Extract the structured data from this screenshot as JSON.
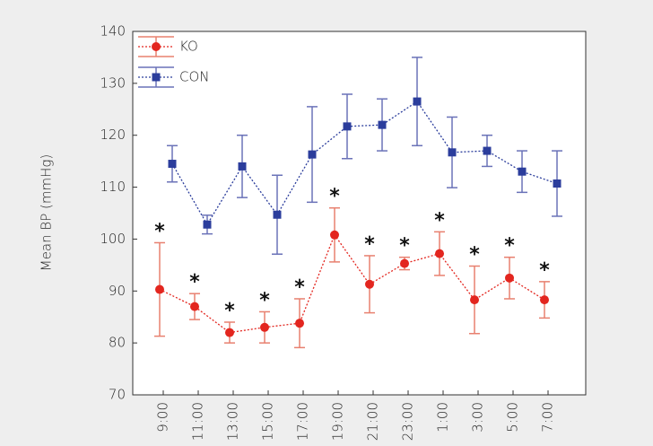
{
  "chart_data": {
    "type": "line",
    "y_label": "Mean BP (mmHg)",
    "categories": [
      "9:00",
      "11:00",
      "13:00",
      "15:00",
      "17:00",
      "19:00",
      "21:00",
      "23:00",
      "1:00",
      "3:00",
      "5:00",
      "7:00"
    ],
    "series": [
      {
        "name": "KO",
        "color": "#e3261f",
        "error_color": "#e8806f",
        "marker": "circle",
        "values": [
          90.3,
          87,
          82,
          83,
          83.8,
          100.8,
          91.3,
          95.3,
          97.2,
          88.3,
          92.5,
          88.3
        ],
        "errors": [
          9,
          2.5,
          2,
          3,
          4.7,
          5.2,
          5.5,
          1.2,
          4.2,
          6.5,
          4,
          3.5
        ],
        "significance_labels": [
          "*",
          "*",
          "*",
          "*",
          "*",
          "*",
          "*",
          "*",
          "*",
          "*",
          "*",
          "*"
        ]
      },
      {
        "name": "CON",
        "color": "#2b3d9c",
        "error_color": "#6a72b8",
        "marker": "square",
        "values": [
          114.5,
          102.8,
          114,
          104.7,
          116.3,
          121.7,
          122,
          126.5,
          116.7,
          117,
          113,
          110.7
        ],
        "errors": [
          3.5,
          1.8,
          6,
          7.6,
          9.2,
          6.2,
          5,
          8.5,
          6.8,
          3,
          4,
          6.3
        ]
      }
    ],
    "ylim": [
      70,
      140
    ],
    "yticks": [
      70,
      80,
      90,
      100,
      110,
      120,
      130,
      140
    ],
    "grid": false,
    "legend": "upper-left"
  }
}
